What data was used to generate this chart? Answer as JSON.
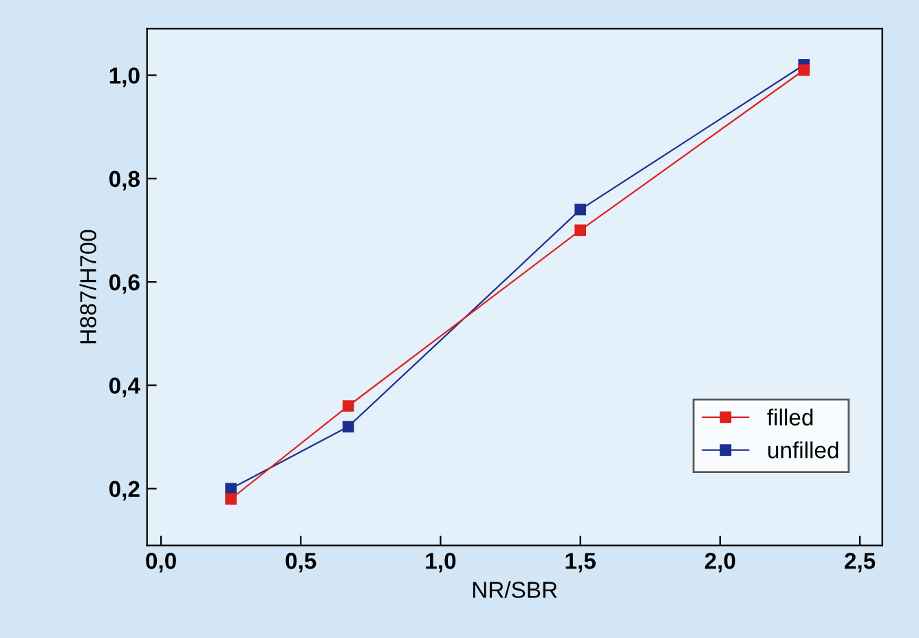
{
  "chart_data": {
    "type": "line",
    "xlabel": "NR/SBR",
    "ylabel": "H887/H700",
    "x": [
      0.25,
      0.67,
      1.5,
      2.3
    ],
    "series": [
      {
        "name": "filled",
        "color": "#e0201c",
        "values": [
          0.18,
          0.36,
          0.7,
          1.01
        ]
      },
      {
        "name": "unfilled",
        "color": "#1c2f8c",
        "values": [
          0.2,
          0.32,
          0.74,
          1.02
        ]
      }
    ],
    "xlim": [
      -0.05,
      2.58
    ],
    "ylim": [
      0.09,
      1.09
    ],
    "xticks": [
      {
        "value": 0.0,
        "label": "0,0"
      },
      {
        "value": 0.5,
        "label": "0,5"
      },
      {
        "value": 1.0,
        "label": "1,0"
      },
      {
        "value": 1.5,
        "label": "1,5"
      },
      {
        "value": 2.0,
        "label": "2,0"
      },
      {
        "value": 2.5,
        "label": "2,5"
      }
    ],
    "yticks": [
      {
        "value": 0.2,
        "label": "0,2"
      },
      {
        "value": 0.4,
        "label": "0,4"
      },
      {
        "value": 0.6,
        "label": "0,6"
      },
      {
        "value": 0.8,
        "label": "0,8"
      },
      {
        "value": 1.0,
        "label": "1,0"
      }
    ],
    "marker": "square",
    "line_style": "solid",
    "legend": "lower right",
    "grid": false
  }
}
